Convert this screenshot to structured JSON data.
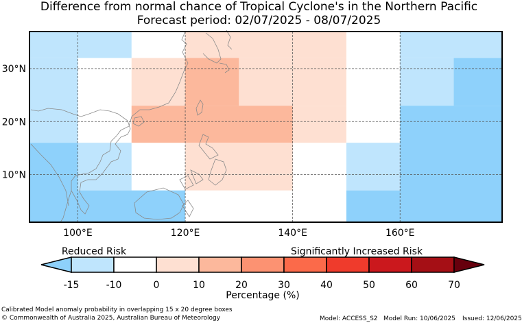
{
  "title": "Difference from normal chance of Tropical Cyclone's in the Northern Pacific",
  "subtitle": "Forecast period: 02/07/2025 - 08/07/2025",
  "map": {
    "lon_range": [
      91,
      179
    ],
    "lat_range": [
      1,
      37
    ],
    "lon_ticks": [
      {
        "value": 100,
        "label": "100°E"
      },
      {
        "value": 120,
        "label": "120°E"
      },
      {
        "value": 140,
        "label": "140°E"
      },
      {
        "value": 160,
        "label": "160°E"
      }
    ],
    "lat_ticks": [
      {
        "value": 10,
        "label": "10°N"
      },
      {
        "value": 20,
        "label": "20°N"
      },
      {
        "value": 30,
        "label": "30°N"
      }
    ],
    "grid": "dashed",
    "cells": [
      {
        "lon": [
          91,
          110
        ],
        "lat": [
          32,
          37
        ],
        "value": -10
      },
      {
        "lon": [
          91,
          100
        ],
        "lat": [
          16,
          32
        ],
        "value": -10
      },
      {
        "lon": [
          91,
          100
        ],
        "lat": [
          1,
          16
        ],
        "value": -20
      },
      {
        "lon": [
          100,
          110
        ],
        "lat": [
          7,
          16
        ],
        "value": -10
      },
      {
        "lon": [
          100,
          120
        ],
        "lat": [
          1,
          7
        ],
        "value": -20
      },
      {
        "lon": [
          120,
          150
        ],
        "lat": [
          32,
          37
        ],
        "value": 5
      },
      {
        "lon": [
          110,
          130
        ],
        "lat": [
          23,
          32
        ],
        "value": 5
      },
      {
        "lon": [
          120,
          130
        ],
        "lat": [
          23,
          32
        ],
        "value": 15
      },
      {
        "lon": [
          130,
          150
        ],
        "lat": [
          23,
          32
        ],
        "value": 5
      },
      {
        "lon": [
          110,
          140
        ],
        "lat": [
          16,
          23
        ],
        "value": 15
      },
      {
        "lon": [
          140,
          150
        ],
        "lat": [
          16,
          23
        ],
        "value": 5
      },
      {
        "lon": [
          120,
          140
        ],
        "lat": [
          7,
          16
        ],
        "value": 5
      },
      {
        "lon": [
          150,
          160
        ],
        "lat": [
          7,
          16
        ],
        "value": -10
      },
      {
        "lon": [
          150,
          160
        ],
        "lat": [
          1,
          7
        ],
        "value": -20
      },
      {
        "lon": [
          160,
          179
        ],
        "lat": [
          32,
          37
        ],
        "value": -10
      },
      {
        "lon": [
          160,
          170
        ],
        "lat": [
          23,
          32
        ],
        "value": -10
      },
      {
        "lon": [
          170,
          179
        ],
        "lat": [
          23,
          32
        ],
        "value": -20
      },
      {
        "lon": [
          160,
          179
        ],
        "lat": [
          1,
          23
        ],
        "value": -20
      }
    ]
  },
  "legend": {
    "label_left": "Reduced Risk",
    "label_right": "Significantly Increased Risk",
    "xlabel": "Percentage (%)",
    "ticks": [
      "-15",
      "-10",
      "0",
      "10",
      "20",
      "30",
      "40",
      "50",
      "60",
      "70"
    ],
    "colors": [
      "#8ed1fb",
      "#bfe5fd",
      "#ffffff",
      "#fee0d2",
      "#fcb89c",
      "#fc9272",
      "#fb6a4a",
      "#ef3b2c",
      "#cb181d",
      "#a50f15",
      "#67000d"
    ]
  },
  "footer": {
    "line1": "Calibrated Model anomaly probability in overlapping 15 x 20 degree boxes",
    "line2": "© Commonwealth of Australia 2025, Australian Bureau of Meteorology",
    "model": "Model: ACCESS_S2",
    "model_run": "Model Run: 10/06/2025",
    "issued": "Issued: 12/06/2025"
  }
}
